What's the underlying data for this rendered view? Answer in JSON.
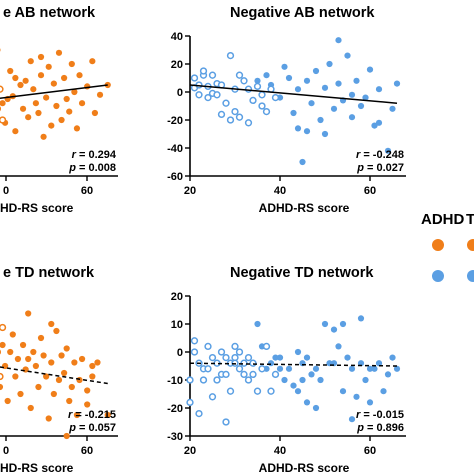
{
  "colors": {
    "adhd": "#F07E19",
    "td": "#5B9FE3",
    "line": "#000000"
  },
  "legend": {
    "group1": "ADHD",
    "group2": "T"
  },
  "chart_data": [
    {
      "type": "scatter",
      "title": "e AB network",
      "xlabel": "HD-RS score",
      "x_ticks": [
        "0",
        "60"
      ],
      "y_ticks": [],
      "xlim": [
        17,
        70
      ],
      "ylim": [
        -60,
        40
      ],
      "stat_r": "0.294",
      "stat_p": "0.008",
      "fit": {
        "x0": 17,
        "y0": -6,
        "x1": 66,
        "y1": 5,
        "dashed": false
      },
      "series": [
        {
          "group": "adhd",
          "filled": true,
          "points": [
            [
              18,
              12
            ],
            [
              19,
              -2
            ],
            [
              20,
              20
            ],
            [
              21,
              -14
            ],
            [
              22,
              -2
            ],
            [
              23,
              30
            ],
            [
              25,
              -8
            ],
            [
              26,
              -22
            ],
            [
              27,
              -5
            ],
            [
              28,
              15
            ],
            [
              29,
              -3
            ],
            [
              30,
              10
            ],
            [
              30,
              -28
            ],
            [
              32,
              5
            ],
            [
              33,
              -12
            ],
            [
              34,
              8
            ],
            [
              35,
              -18
            ],
            [
              36,
              22
            ],
            [
              37,
              2
            ],
            [
              38,
              -8
            ],
            [
              39,
              -15
            ],
            [
              40,
              25
            ],
            [
              40,
              12
            ],
            [
              41,
              -32
            ],
            [
              42,
              -4
            ],
            [
              43,
              18
            ],
            [
              44,
              -24
            ],
            [
              45,
              6
            ],
            [
              46,
              -10
            ],
            [
              47,
              28
            ],
            [
              48,
              -20
            ],
            [
              49,
              10
            ],
            [
              50,
              -5
            ],
            [
              51,
              -14
            ],
            [
              52,
              20
            ],
            [
              53,
              0
            ],
            [
              54,
              -26
            ],
            [
              55,
              12
            ],
            [
              56,
              -8
            ],
            [
              58,
              4
            ],
            [
              60,
              22
            ],
            [
              61,
              -15
            ],
            [
              63,
              -2
            ],
            [
              66,
              5
            ]
          ]
        },
        {
          "group": "adhd",
          "filled": false,
          "points": [
            [
              17,
              2
            ],
            [
              19,
              -10
            ],
            [
              20,
              -4
            ],
            [
              21,
              5
            ],
            [
              22,
              3
            ],
            [
              23,
              -12
            ],
            [
              24,
              2
            ],
            [
              25,
              -20
            ]
          ]
        }
      ]
    },
    {
      "type": "scatter",
      "title": "Negative AB network",
      "xlabel": "ADHD-RS score",
      "x_ticks": [
        "20",
        "40",
        "60"
      ],
      "y_ticks": [
        "40",
        "20",
        "0",
        "-20",
        "-40",
        "-60"
      ],
      "xlim": [
        20,
        68
      ],
      "ylim": [
        -60,
        40
      ],
      "stat_r": "-0.248",
      "stat_p": "0.027",
      "fit": {
        "x0": 20,
        "y0": 5,
        "x1": 66,
        "y1": -8,
        "dashed": false
      },
      "series": [
        {
          "group": "td",
          "filled": true,
          "points": [
            [
              35,
              8
            ],
            [
              37,
              12
            ],
            [
              38,
              5
            ],
            [
              40,
              -4
            ],
            [
              41,
              18
            ],
            [
              42,
              10
            ],
            [
              43,
              -15
            ],
            [
              44,
              2
            ],
            [
              44,
              -26
            ],
            [
              45,
              -50
            ],
            [
              46,
              8
            ],
            [
              47,
              -8
            ],
            [
              48,
              15
            ],
            [
              49,
              -20
            ],
            [
              50,
              3
            ],
            [
              50,
              -30
            ],
            [
              51,
              20
            ],
            [
              52,
              -12
            ],
            [
              53,
              37
            ],
            [
              53,
              6
            ],
            [
              54,
              -6
            ],
            [
              55,
              26
            ],
            [
              56,
              -18
            ],
            [
              57,
              8
            ],
            [
              58,
              -10
            ],
            [
              59,
              -4
            ],
            [
              60,
              16
            ],
            [
              61,
              -24
            ],
            [
              62,
              2
            ],
            [
              64,
              -42
            ],
            [
              65,
              -12
            ],
            [
              66,
              6
            ],
            [
              46,
              -28
            ],
            [
              56,
              -2
            ],
            [
              62,
              -22
            ]
          ]
        },
        {
          "group": "td",
          "filled": false,
          "points": [
            [
              21,
              10
            ],
            [
              21,
              3
            ],
            [
              22,
              5
            ],
            [
              22,
              -2
            ],
            [
              23,
              12
            ],
            [
              23,
              15
            ],
            [
              24,
              4
            ],
            [
              24,
              -4
            ],
            [
              25,
              12
            ],
            [
              25,
              -1
            ],
            [
              26,
              6
            ],
            [
              26,
              -2
            ],
            [
              27,
              -16
            ],
            [
              27,
              5
            ],
            [
              28,
              -8
            ],
            [
              29,
              26
            ],
            [
              29,
              -20
            ],
            [
              30,
              2
            ],
            [
              30,
              -14
            ],
            [
              31,
              12
            ],
            [
              31,
              -18
            ],
            [
              32,
              8
            ],
            [
              33,
              2
            ],
            [
              33,
              -22
            ],
            [
              34,
              -6
            ],
            [
              35,
              4
            ],
            [
              36,
              -10
            ],
            [
              36,
              -2
            ],
            [
              37,
              -14
            ],
            [
              38,
              2
            ],
            [
              39,
              -4
            ]
          ]
        }
      ]
    },
    {
      "type": "scatter",
      "title": "e TD network",
      "xlabel": "HD-RS score",
      "x_ticks": [
        "0",
        "60"
      ],
      "y_ticks": [],
      "xlim": [
        17,
        70
      ],
      "ylim": [
        -20,
        20
      ],
      "stat_r": "-0.215",
      "stat_p": "0.057",
      "fit": {
        "x0": 17,
        "y0": 0.5,
        "x1": 66,
        "y1": -5,
        "dashed": true
      },
      "series": [
        {
          "group": "adhd",
          "filled": true,
          "points": [
            [
              18,
              4
            ],
            [
              20,
              8
            ],
            [
              21,
              -2
            ],
            [
              22,
              2
            ],
            [
              24,
              -6
            ],
            [
              25,
              6
            ],
            [
              26,
              0
            ],
            [
              27,
              -10
            ],
            [
              28,
              4
            ],
            [
              29,
              9
            ],
            [
              30,
              -3
            ],
            [
              31,
              2
            ],
            [
              32,
              -8
            ],
            [
              33,
              6
            ],
            [
              34,
              -1
            ],
            [
              35,
              2
            ],
            [
              36,
              -12
            ],
            [
              37,
              4
            ],
            [
              38,
              0
            ],
            [
              39,
              -6
            ],
            [
              40,
              8
            ],
            [
              41,
              3
            ],
            [
              42,
              -3
            ],
            [
              43,
              -15
            ],
            [
              44,
              1
            ],
            [
              45,
              -8
            ],
            [
              46,
              10
            ],
            [
              47,
              -4
            ],
            [
              48,
              3
            ],
            [
              49,
              -2
            ],
            [
              50,
              5
            ],
            [
              51,
              -10
            ],
            [
              52,
              -6
            ],
            [
              53,
              1
            ],
            [
              54,
              -14
            ],
            [
              55,
              -4
            ],
            [
              56,
              2
            ],
            [
              58,
              -7
            ],
            [
              60,
              -3
            ],
            [
              62,
              1
            ],
            [
              66,
              -14
            ],
            [
              35,
              15
            ],
            [
              44,
              12
            ],
            [
              50,
              -20
            ],
            [
              58,
              -11
            ],
            [
              60,
              0
            ]
          ]
        },
        {
          "group": "adhd",
          "filled": false,
          "points": [
            [
              17,
              -3
            ],
            [
              18,
              7
            ],
            [
              19,
              2
            ],
            [
              20,
              -14
            ],
            [
              21,
              10
            ],
            [
              22,
              -8
            ],
            [
              23,
              4
            ],
            [
              24,
              -3
            ],
            [
              25,
              11
            ]
          ]
        }
      ]
    },
    {
      "type": "scatter",
      "title": "Negative TD network",
      "xlabel": "ADHD-RS score",
      "x_ticks": [
        "20",
        "40",
        "60"
      ],
      "y_ticks": [
        "20",
        "10",
        "0",
        "-10",
        "-20",
        "-30"
      ],
      "xlim": [
        20,
        68
      ],
      "ylim": [
        -30,
        20
      ],
      "stat_r": "-0.015",
      "stat_p": "0.896",
      "fit": {
        "x0": 20,
        "y0": -4,
        "x1": 66,
        "y1": -5,
        "dashed": true
      },
      "series": [
        {
          "group": "td",
          "filled": true,
          "points": [
            [
              35,
              10
            ],
            [
              36,
              2
            ],
            [
              37,
              -6
            ],
            [
              38,
              -4
            ],
            [
              39,
              -2
            ],
            [
              40,
              -6
            ],
            [
              41,
              -10
            ],
            [
              42,
              -6
            ],
            [
              43,
              -12
            ],
            [
              44,
              0
            ],
            [
              44,
              -14
            ],
            [
              45,
              -4
            ],
            [
              46,
              -2
            ],
            [
              46,
              -18
            ],
            [
              47,
              -8
            ],
            [
              48,
              -6
            ],
            [
              49,
              -10
            ],
            [
              50,
              10
            ],
            [
              51,
              -4
            ],
            [
              52,
              -4
            ],
            [
              52,
              8
            ],
            [
              53,
              2
            ],
            [
              54,
              10
            ],
            [
              54,
              -14
            ],
            [
              55,
              -2
            ],
            [
              56,
              -6
            ],
            [
              57,
              -16
            ],
            [
              58,
              12
            ],
            [
              58,
              -4
            ],
            [
              59,
              -10
            ],
            [
              60,
              -6
            ],
            [
              60,
              -18
            ],
            [
              61,
              -6
            ],
            [
              62,
              -4
            ],
            [
              63,
              -14
            ],
            [
              64,
              -8
            ],
            [
              65,
              -2
            ],
            [
              66,
              -6
            ],
            [
              40,
              -2
            ],
            [
              48,
              -20
            ],
            [
              56,
              -24
            ],
            [
              45,
              -10
            ]
          ]
        },
        {
          "group": "td",
          "filled": false,
          "points": [
            [
              20,
              -10
            ],
            [
              20,
              -18
            ],
            [
              21,
              0
            ],
            [
              21,
              4
            ],
            [
              22,
              -4
            ],
            [
              22,
              -22
            ],
            [
              23,
              -6
            ],
            [
              23,
              -10
            ],
            [
              24,
              2
            ],
            [
              24,
              -6
            ],
            [
              25,
              -2
            ],
            [
              25,
              -16
            ],
            [
              26,
              -4
            ],
            [
              26,
              -10
            ],
            [
              27,
              0
            ],
            [
              27,
              -8
            ],
            [
              28,
              -2
            ],
            [
              28,
              -8
            ],
            [
              29,
              -4
            ],
            [
              29,
              -14
            ],
            [
              30,
              -2
            ],
            [
              30,
              2
            ],
            [
              31,
              -6
            ],
            [
              31,
              0
            ],
            [
              32,
              -4
            ],
            [
              32,
              -8
            ],
            [
              33,
              -2
            ],
            [
              33,
              -10
            ],
            [
              34,
              -8
            ],
            [
              34,
              -4
            ],
            [
              35,
              -14
            ],
            [
              36,
              -6
            ],
            [
              37,
              2
            ],
            [
              38,
              -14
            ],
            [
              39,
              -8
            ],
            [
              28,
              -25
            ],
            [
              30,
              -4
            ]
          ]
        }
      ]
    }
  ]
}
